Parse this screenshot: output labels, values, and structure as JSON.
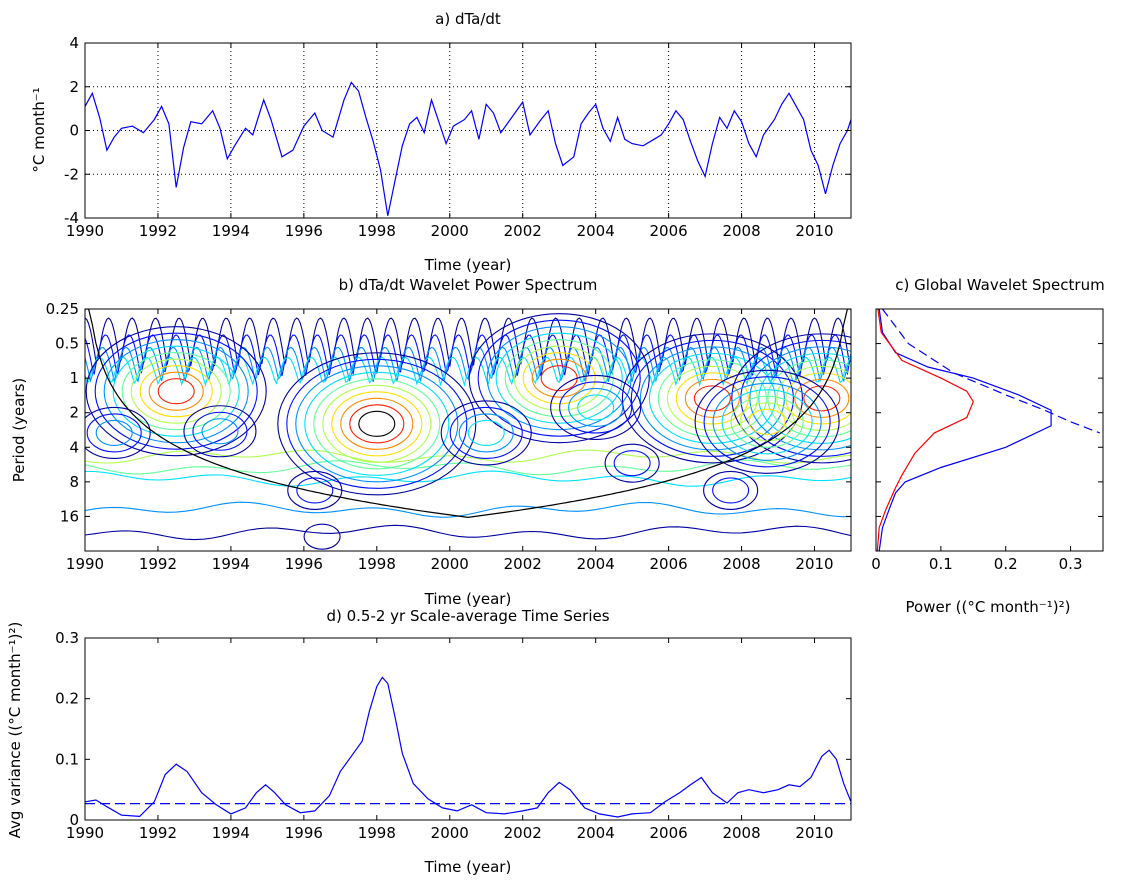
{
  "chart_data": [
    {
      "id": "a",
      "type": "line",
      "title": "a) dTa/dt",
      "xlabel": "Time (year)",
      "ylabel": "°C month⁻¹",
      "xlim": [
        1990,
        2011
      ],
      "ylim": [
        -4,
        4
      ],
      "xticks": [
        1990,
        1992,
        1994,
        1996,
        1998,
        2000,
        2002,
        2004,
        2006,
        2008,
        2010
      ],
      "yticks": [
        -4,
        -2,
        0,
        2,
        4
      ],
      "grid": "dotted",
      "series": [
        {
          "color": "#0000ff",
          "points": [
            [
              1990.0,
              1.1
            ],
            [
              1990.2,
              1.7
            ],
            [
              1990.4,
              0.6
            ],
            [
              1990.6,
              -0.9
            ],
            [
              1990.8,
              -0.3
            ],
            [
              1991.0,
              0.1
            ],
            [
              1991.3,
              0.2
            ],
            [
              1991.6,
              -0.1
            ],
            [
              1991.9,
              0.5
            ],
            [
              1992.1,
              1.1
            ],
            [
              1992.3,
              0.3
            ],
            [
              1992.5,
              -2.6
            ],
            [
              1992.7,
              -0.8
            ],
            [
              1992.9,
              0.4
            ],
            [
              1993.2,
              0.3
            ],
            [
              1993.5,
              0.9
            ],
            [
              1993.7,
              0.1
            ],
            [
              1993.9,
              -1.3
            ],
            [
              1994.1,
              -0.7
            ],
            [
              1994.4,
              0.1
            ],
            [
              1994.6,
              -0.2
            ],
            [
              1994.9,
              1.4
            ],
            [
              1995.1,
              0.5
            ],
            [
              1995.4,
              -1.2
            ],
            [
              1995.7,
              -0.9
            ],
            [
              1996.0,
              0.2
            ],
            [
              1996.3,
              0.8
            ],
            [
              1996.5,
              0.0
            ],
            [
              1996.8,
              -0.3
            ],
            [
              1997.1,
              1.4
            ],
            [
              1997.3,
              2.2
            ],
            [
              1997.5,
              1.8
            ],
            [
              1997.7,
              0.6
            ],
            [
              1997.9,
              -0.5
            ],
            [
              1998.1,
              -1.8
            ],
            [
              1998.3,
              -3.9
            ],
            [
              1998.5,
              -2.3
            ],
            [
              1998.7,
              -0.7
            ],
            [
              1998.9,
              0.3
            ],
            [
              1999.1,
              0.6
            ],
            [
              1999.3,
              -0.1
            ],
            [
              1999.5,
              1.4
            ],
            [
              1999.7,
              0.4
            ],
            [
              1999.9,
              -0.6
            ],
            [
              2000.1,
              0.2
            ],
            [
              2000.4,
              0.5
            ],
            [
              2000.6,
              0.9
            ],
            [
              2000.8,
              -0.4
            ],
            [
              2001.0,
              1.2
            ],
            [
              2001.2,
              0.8
            ],
            [
              2001.4,
              -0.1
            ],
            [
              2001.7,
              0.6
            ],
            [
              2002.0,
              1.3
            ],
            [
              2002.2,
              -0.2
            ],
            [
              2002.5,
              0.5
            ],
            [
              2002.7,
              0.9
            ],
            [
              2002.9,
              -0.6
            ],
            [
              2003.1,
              -1.6
            ],
            [
              2003.4,
              -1.2
            ],
            [
              2003.6,
              0.3
            ],
            [
              2003.8,
              0.8
            ],
            [
              2004.0,
              1.2
            ],
            [
              2004.2,
              0.1
            ],
            [
              2004.4,
              -0.5
            ],
            [
              2004.6,
              0.6
            ],
            [
              2004.8,
              -0.4
            ],
            [
              2005.0,
              -0.6
            ],
            [
              2005.3,
              -0.7
            ],
            [
              2005.6,
              -0.4
            ],
            [
              2005.8,
              -0.2
            ],
            [
              2006.0,
              0.3
            ],
            [
              2006.2,
              0.9
            ],
            [
              2006.4,
              0.5
            ],
            [
              2006.6,
              -0.5
            ],
            [
              2006.8,
              -1.4
            ],
            [
              2007.0,
              -2.1
            ],
            [
              2007.2,
              -0.6
            ],
            [
              2007.4,
              0.6
            ],
            [
              2007.6,
              0.1
            ],
            [
              2007.8,
              0.9
            ],
            [
              2008.0,
              0.4
            ],
            [
              2008.2,
              -0.6
            ],
            [
              2008.4,
              -1.2
            ],
            [
              2008.6,
              -0.2
            ],
            [
              2008.9,
              0.5
            ],
            [
              2009.1,
              1.2
            ],
            [
              2009.3,
              1.7
            ],
            [
              2009.5,
              1.1
            ],
            [
              2009.7,
              0.5
            ],
            [
              2009.9,
              -0.9
            ],
            [
              2010.1,
              -1.6
            ],
            [
              2010.3,
              -2.9
            ],
            [
              2010.5,
              -1.6
            ],
            [
              2010.7,
              -0.6
            ],
            [
              2010.9,
              0.0
            ],
            [
              2011.0,
              0.5
            ]
          ]
        }
      ]
    },
    {
      "id": "b",
      "type": "heatmap",
      "title": "b) dTa/dt Wavelet Power Spectrum",
      "xlabel": "Time (year)",
      "ylabel": "Period (years)",
      "xlim": [
        1990,
        2011
      ],
      "yscale": "log2",
      "ylim_period": [
        0.25,
        32
      ],
      "xticks": [
        1990,
        1992,
        1994,
        1996,
        1998,
        2000,
        2002,
        2004,
        2006,
        2008,
        2010
      ],
      "yticks": [
        0.25,
        0.5,
        1,
        2,
        4,
        8,
        16
      ],
      "ytick_labels": [
        "0.25",
        "0.5",
        "1",
        "2",
        "4",
        "8",
        "16"
      ],
      "significance_contour_color": "#000000",
      "cone_of_influence": true,
      "power_centers": [
        {
          "t": 1998.0,
          "p": 2.5,
          "level": 9
        },
        {
          "t": 1992.5,
          "p": 1.3,
          "level": 8
        },
        {
          "t": 2003.0,
          "p": 1.0,
          "level": 8
        },
        {
          "t": 2007.2,
          "p": 1.5,
          "level": 8
        },
        {
          "t": 2010.2,
          "p": 1.5,
          "level": 8
        },
        {
          "t": 2008.7,
          "p": 2.4,
          "level": 6
        },
        {
          "t": 2001.0,
          "p": 3.0,
          "level": 3
        },
        {
          "t": 2004.0,
          "p": 1.8,
          "level": 3
        },
        {
          "t": 1990.8,
          "p": 3.0,
          "level": 2
        },
        {
          "t": 1993.7,
          "p": 2.9,
          "level": 2
        },
        {
          "t": 2005.0,
          "p": 5.5,
          "level": 1
        },
        {
          "t": 2007.7,
          "p": 9.5,
          "level": 1
        },
        {
          "t": 1996.3,
          "p": 9.5,
          "level": 1
        },
        {
          "t": 1996.5,
          "p": 24.0,
          "level": 0
        }
      ],
      "level_colors": [
        "#0000a0",
        "#0010ff",
        "#0090ff",
        "#00e0ff",
        "#60ff9a",
        "#b0ff50",
        "#ffe000",
        "#ff8c00",
        "#ff2000",
        "#000000"
      ]
    },
    {
      "id": "c",
      "type": "line",
      "title": "c) Global Wavelet Spectrum",
      "xlabel": "Power ((°C month⁻¹)²)",
      "xlim": [
        0,
        0.35
      ],
      "xticks": [
        0,
        0.1,
        0.2,
        0.3
      ],
      "xtick_labels": [
        "0",
        "0.1",
        "0.2",
        "0.3"
      ],
      "yscale": "log2",
      "ylim_period": [
        0.25,
        32
      ],
      "series": [
        {
          "color": "#0000ff",
          "style": "solid",
          "points": [
            [
              0.005,
              0.25
            ],
            [
              0.01,
              0.4
            ],
            [
              0.03,
              0.6
            ],
            [
              0.08,
              0.8
            ],
            [
              0.15,
              1.0
            ],
            [
              0.22,
              1.4
            ],
            [
              0.27,
              1.9
            ],
            [
              0.27,
              2.6
            ],
            [
              0.2,
              4.0
            ],
            [
              0.1,
              6.0
            ],
            [
              0.045,
              8.0
            ],
            [
              0.03,
              10.0
            ],
            [
              0.02,
              14.0
            ],
            [
              0.01,
              20.0
            ],
            [
              0.005,
              32.0
            ]
          ]
        },
        {
          "color": "#ff0000",
          "style": "solid",
          "points": [
            [
              0.003,
              0.25
            ],
            [
              0.008,
              0.4
            ],
            [
              0.04,
              0.7
            ],
            [
              0.1,
              1.0
            ],
            [
              0.14,
              1.3
            ],
            [
              0.15,
              1.6
            ],
            [
              0.14,
              2.2
            ],
            [
              0.09,
              3.0
            ],
            [
              0.06,
              4.5
            ],
            [
              0.04,
              7.0
            ],
            [
              0.03,
              9.0
            ],
            [
              0.015,
              14.0
            ],
            [
              0.005,
              20.0
            ],
            [
              0.002,
              32.0
            ]
          ]
        },
        {
          "color": "#0000ff",
          "style": "dashed",
          "points": [
            [
              0.01,
              0.25
            ],
            [
              0.05,
              0.5
            ],
            [
              0.12,
              0.9
            ],
            [
              0.2,
              1.4
            ],
            [
              0.26,
              1.9
            ],
            [
              0.3,
              2.4
            ],
            [
              0.345,
              3.0
            ]
          ]
        }
      ]
    },
    {
      "id": "d",
      "type": "line",
      "title": "d) 0.5-2 yr Scale-average Time Series",
      "xlabel": "Time (year)",
      "ylabel": "Avg variance ((°C month⁻¹)²)",
      "xlim": [
        1990,
        2011
      ],
      "ylim": [
        0,
        0.3
      ],
      "xticks": [
        1990,
        1992,
        1994,
        1996,
        1998,
        2000,
        2002,
        2004,
        2006,
        2008,
        2010
      ],
      "yticks": [
        0,
        0.1,
        0.2,
        0.3
      ],
      "ytick_labels": [
        "0",
        "0.1",
        "0.2",
        "0.3"
      ],
      "significance_level": 0.027,
      "series": [
        {
          "color": "#0000ff",
          "style": "solid",
          "points": [
            [
              1990.0,
              0.03
            ],
            [
              1990.3,
              0.033
            ],
            [
              1990.6,
              0.022
            ],
            [
              1991.0,
              0.008
            ],
            [
              1991.5,
              0.006
            ],
            [
              1991.9,
              0.03
            ],
            [
              1992.2,
              0.075
            ],
            [
              1992.5,
              0.092
            ],
            [
              1992.8,
              0.08
            ],
            [
              1993.2,
              0.045
            ],
            [
              1993.6,
              0.025
            ],
            [
              1994.0,
              0.01
            ],
            [
              1994.4,
              0.02
            ],
            [
              1994.7,
              0.045
            ],
            [
              1994.95,
              0.058
            ],
            [
              1995.2,
              0.045
            ],
            [
              1995.5,
              0.025
            ],
            [
              1995.9,
              0.012
            ],
            [
              1996.3,
              0.015
            ],
            [
              1996.7,
              0.04
            ],
            [
              1997.0,
              0.08
            ],
            [
              1997.3,
              0.105
            ],
            [
              1997.6,
              0.13
            ],
            [
              1997.8,
              0.18
            ],
            [
              1998.0,
              0.22
            ],
            [
              1998.15,
              0.235
            ],
            [
              1998.3,
              0.225
            ],
            [
              1998.5,
              0.17
            ],
            [
              1998.7,
              0.11
            ],
            [
              1999.0,
              0.06
            ],
            [
              1999.4,
              0.035
            ],
            [
              1999.8,
              0.02
            ],
            [
              2000.2,
              0.015
            ],
            [
              2000.6,
              0.025
            ],
            [
              2001.0,
              0.012
            ],
            [
              2001.5,
              0.01
            ],
            [
              2002.0,
              0.015
            ],
            [
              2002.4,
              0.02
            ],
            [
              2002.7,
              0.045
            ],
            [
              2003.0,
              0.062
            ],
            [
              2003.3,
              0.05
            ],
            [
              2003.7,
              0.02
            ],
            [
              2004.1,
              0.01
            ],
            [
              2004.6,
              0.005
            ],
            [
              2005.0,
              0.01
            ],
            [
              2005.5,
              0.012
            ],
            [
              2005.9,
              0.03
            ],
            [
              2006.3,
              0.045
            ],
            [
              2006.6,
              0.058
            ],
            [
              2006.9,
              0.07
            ],
            [
              2007.2,
              0.045
            ],
            [
              2007.6,
              0.028
            ],
            [
              2007.9,
              0.045
            ],
            [
              2008.2,
              0.05
            ],
            [
              2008.6,
              0.045
            ],
            [
              2009.0,
              0.05
            ],
            [
              2009.3,
              0.058
            ],
            [
              2009.6,
              0.055
            ],
            [
              2009.9,
              0.07
            ],
            [
              2010.2,
              0.105
            ],
            [
              2010.4,
              0.115
            ],
            [
              2010.6,
              0.1
            ],
            [
              2010.8,
              0.06
            ],
            [
              2011.0,
              0.03
            ]
          ]
        }
      ]
    }
  ]
}
